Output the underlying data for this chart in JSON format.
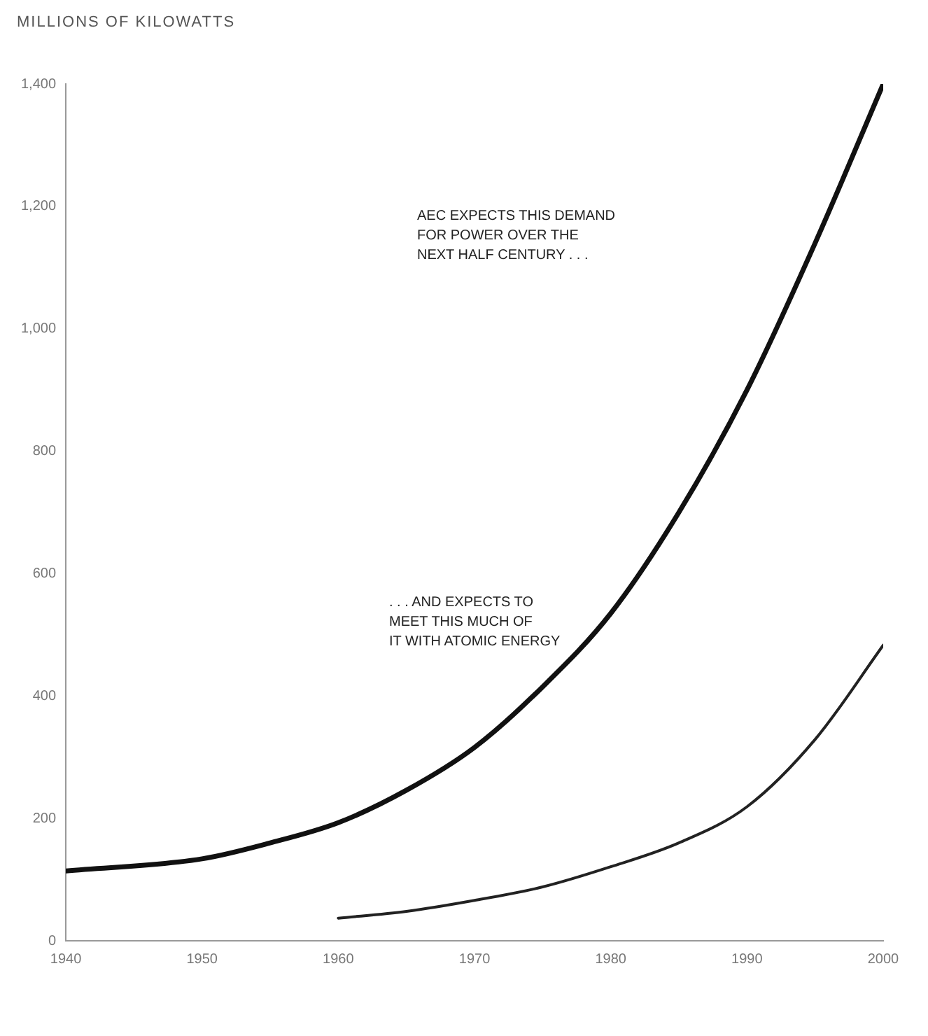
{
  "chart_data": {
    "type": "line",
    "ylabel": "MILLIONS OF KILOWATTS",
    "xlim": [
      1940,
      2000
    ],
    "xticks": [
      1940,
      1950,
      1960,
      1970,
      1980,
      1990,
      2000
    ],
    "ylim": [
      0,
      1400
    ],
    "yticks": [
      {
        "value": 0,
        "label": "0"
      },
      {
        "value": 200,
        "label": "200"
      },
      {
        "value": 400,
        "label": "400"
      },
      {
        "value": 600,
        "label": "600"
      },
      {
        "value": 800,
        "label": "800"
      },
      {
        "value": 1000,
        "label": "1,000"
      },
      {
        "value": 1200,
        "label": "1,200"
      },
      {
        "value": 1400,
        "label": "1,400"
      }
    ],
    "series": [
      {
        "color": "#111111",
        "x": [
          1940,
          1950,
          1955,
          1960,
          1965,
          1970,
          1975,
          1980,
          1985,
          1990,
          1995,
          2000
        ],
        "values": [
          114,
          134,
          160,
          193,
          246,
          316,
          415,
          535,
          700,
          900,
          1140,
          1400
        ]
      },
      {
        "color": "#222222",
        "x": [
          1960,
          1965,
          1970,
          1975,
          1980,
          1985,
          1990,
          1995,
          2000
        ],
        "values": [
          37,
          48,
          66,
          88,
          121,
          160,
          219,
          329,
          483
        ]
      }
    ],
    "annotations": [
      "AEC EXPECTS THIS DEMAND\nFOR POWER OVER THE\nNEXT HALF CENTURY . . .",
      ". . . AND EXPECTS TO\nMEET THIS MUCH OF\nIT WITH ATOMIC ENERGY"
    ],
    "grid": false,
    "legend": false,
    "marker": "none",
    "line_style": "solid"
  }
}
